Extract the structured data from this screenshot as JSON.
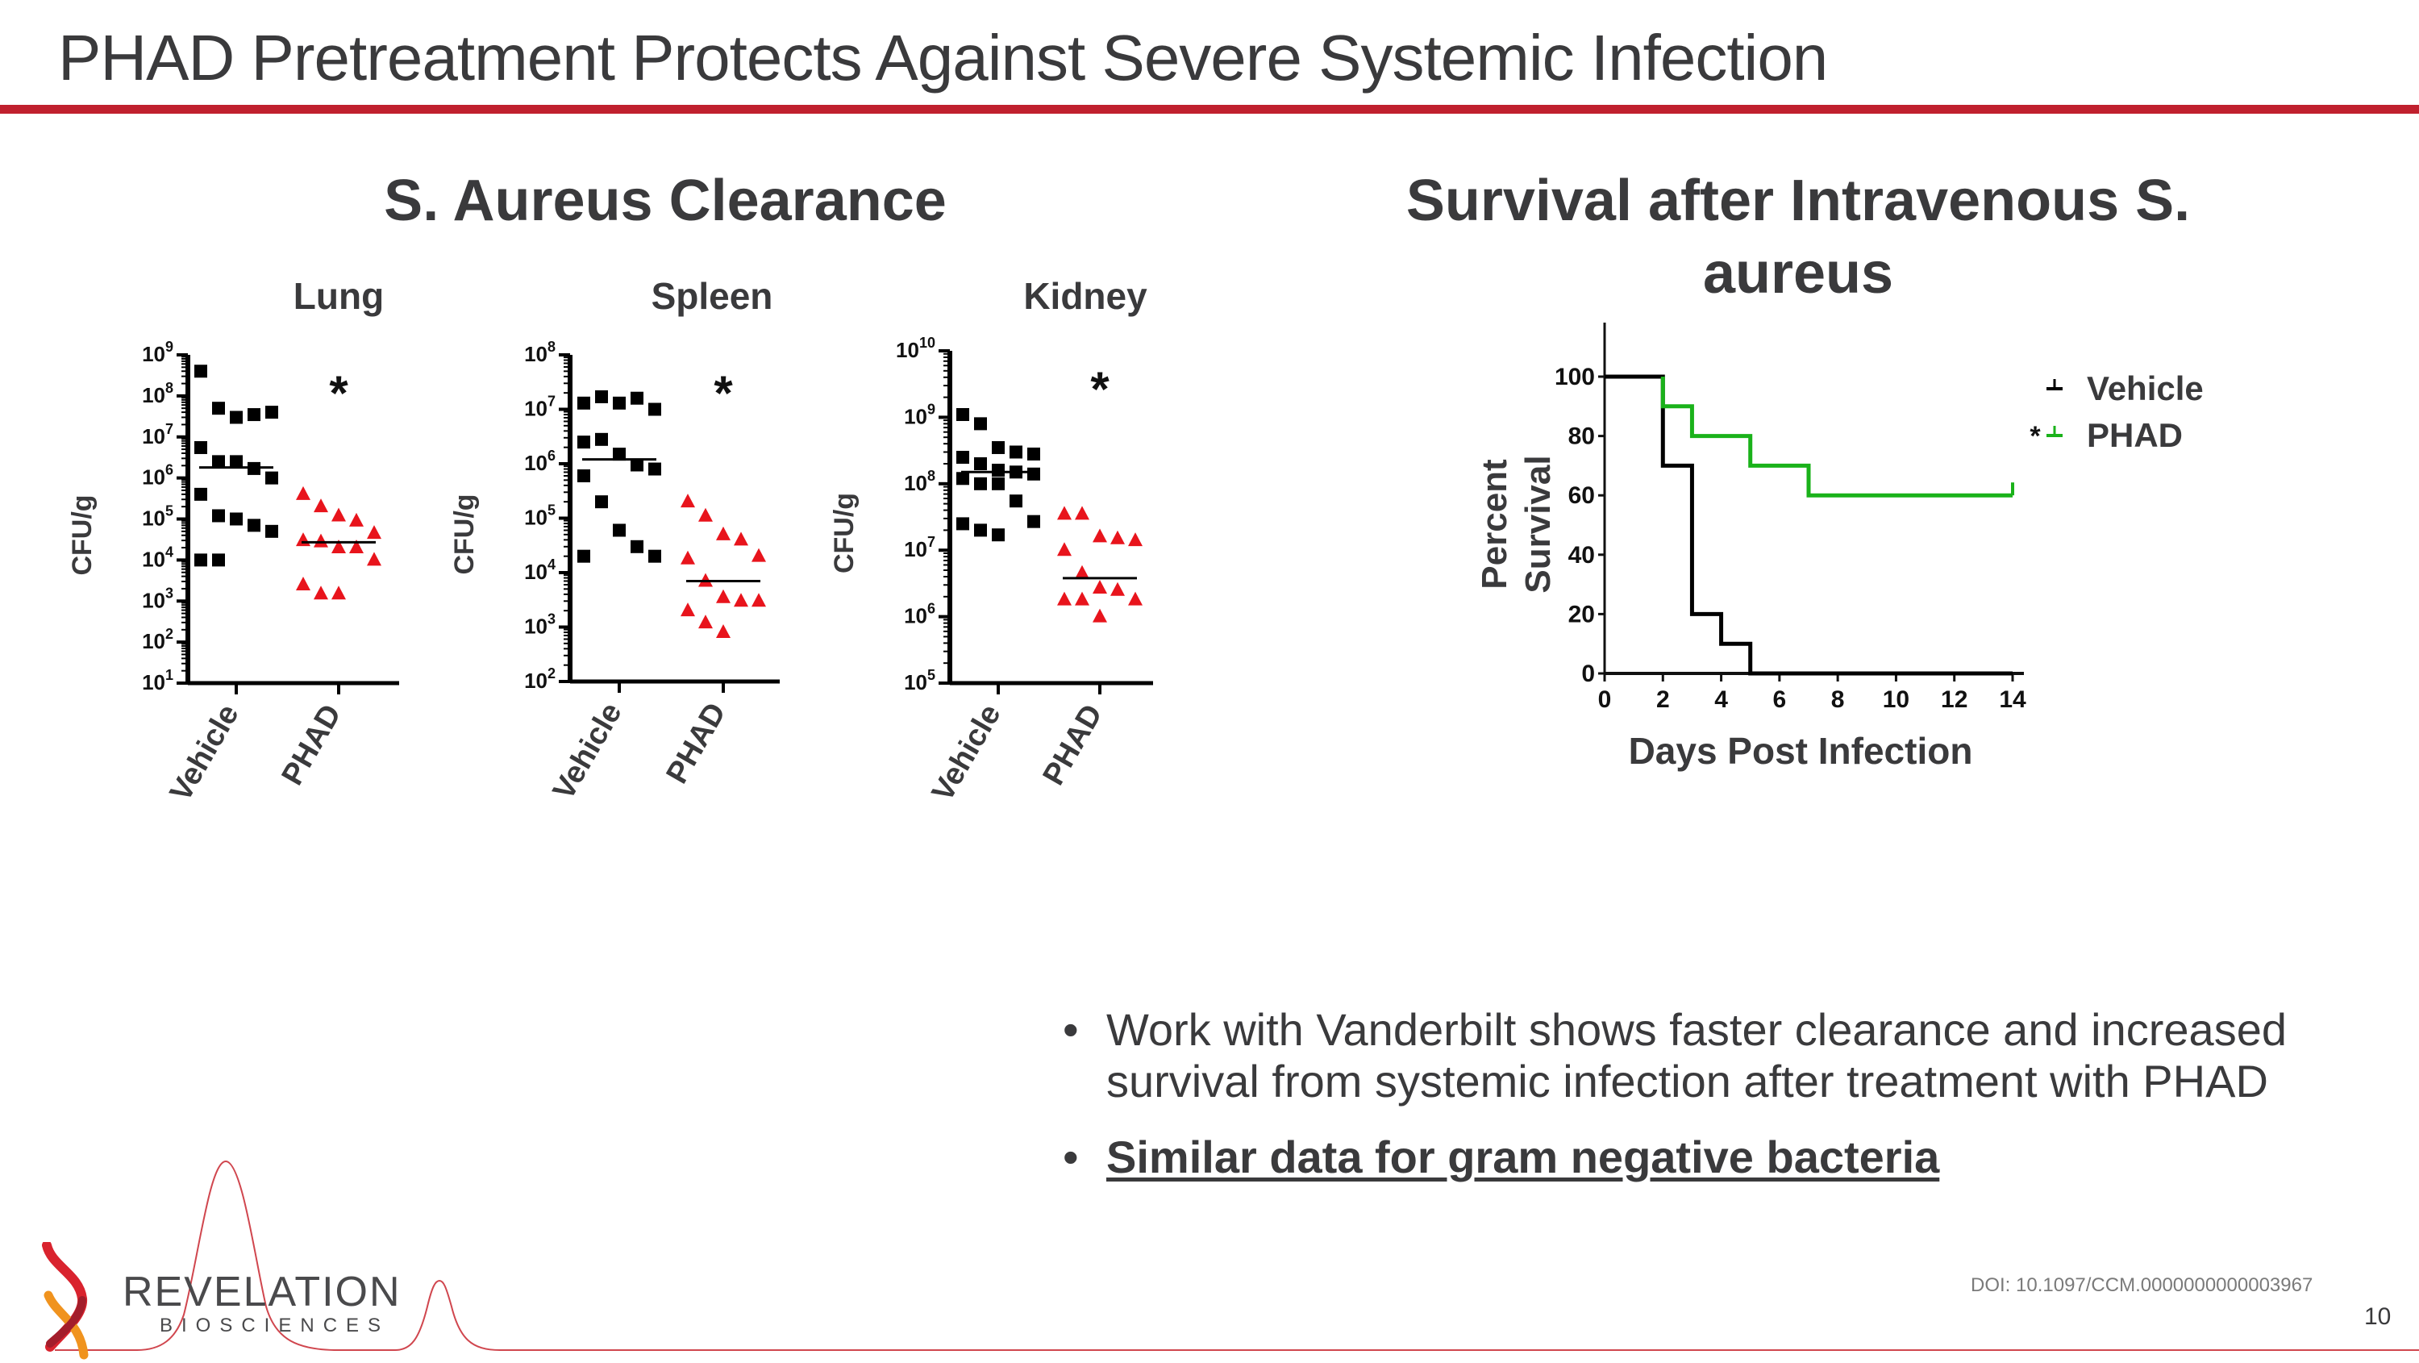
{
  "slide": {
    "title": "PHAD Pretreatment Protects Against Severe Systemic Infection",
    "accent_color": "#c0202e",
    "page_number": "10",
    "doi": "DOI: 10.1097/CCM.0000000000003967"
  },
  "left_section": {
    "title": "S. Aureus Clearance",
    "panels": [
      {
        "label": "Lung"
      },
      {
        "label": "Spleen"
      },
      {
        "label": "Kidney"
      }
    ]
  },
  "right_section": {
    "title_line1": "Survival after Intravenous S.",
    "title_line2": "aureus"
  },
  "bullets": [
    {
      "text": "Work with Vanderbilt shows faster clearance and increased survival from systemic infection after treatment with PHAD"
    },
    {
      "text": "Similar data for gram negative bacteria"
    }
  ],
  "bullet_glyph": "•",
  "logo": {
    "name": "REVELATION",
    "sub": "BIOSCIENCES",
    "colors": [
      "#d9232e",
      "#a31d2b",
      "#f0931e"
    ]
  },
  "chart_data": [
    {
      "type": "scatter",
      "title": "Lung",
      "ylabel": "CFU/g",
      "yscale": "log",
      "ylim": [
        10,
        1000000000
      ],
      "yticks": [
        "10^1",
        "10^2",
        "10^3",
        "10^4",
        "10^5",
        "10^6",
        "10^7",
        "10^8",
        "10^9"
      ],
      "categories": [
        "Vehicle",
        "PHAD"
      ],
      "significance": "*",
      "series": [
        {
          "name": "Vehicle",
          "marker": "square",
          "color": "#000000",
          "median": 1800000,
          "values": [
            400000000,
            50000000,
            30000000,
            35000000,
            40000000,
            5500000,
            2500000,
            2500000,
            1700000,
            1000000,
            400000,
            120000,
            100000,
            70000,
            50000,
            10000,
            10000
          ]
        },
        {
          "name": "PHAD",
          "marker": "triangle",
          "color": "#e8141c",
          "median": 27000,
          "values": [
            400000,
            200000,
            120000,
            90000,
            45000,
            30000,
            28000,
            20000,
            20000,
            10000,
            2500,
            1500,
            1500
          ]
        }
      ]
    },
    {
      "type": "scatter",
      "title": "Spleen",
      "ylabel": "CFU/g",
      "yscale": "log",
      "ylim": [
        100,
        100000000
      ],
      "yticks": [
        "10^2",
        "10^3",
        "10^4",
        "10^5",
        "10^6",
        "10^7",
        "10^8"
      ],
      "categories": [
        "Vehicle",
        "PHAD"
      ],
      "significance": "*",
      "series": [
        {
          "name": "Vehicle",
          "marker": "square",
          "color": "#000000",
          "median": 1200000,
          "values": [
            13000000,
            17000000,
            13000000,
            16000000,
            10000000,
            2500000,
            2800000,
            1500000,
            950000,
            800000,
            600000,
            200000,
            60000,
            30000,
            20000,
            20000
          ]
        },
        {
          "name": "PHAD",
          "marker": "triangle",
          "color": "#e8141c",
          "median": 7000,
          "values": [
            200000,
            110000,
            50000,
            40000,
            20000,
            18000,
            7000,
            3500,
            3000,
            3000,
            2000,
            1200,
            800
          ]
        }
      ]
    },
    {
      "type": "scatter",
      "title": "Kidney",
      "ylabel": "CFU/g",
      "yscale": "log",
      "ylim": [
        100000,
        10000000000
      ],
      "yticks": [
        "10^5",
        "10^6",
        "10^7",
        "10^8",
        "10^9",
        "10^10"
      ],
      "categories": [
        "Vehicle",
        "PHAD"
      ],
      "significance": "*",
      "series": [
        {
          "name": "Vehicle",
          "marker": "square",
          "color": "#000000",
          "median": 150000000,
          "values": [
            1100000000,
            800000000,
            350000000,
            300000000,
            280000000,
            250000000,
            200000000,
            160000000,
            150000000,
            140000000,
            120000000,
            100000000,
            100000000,
            55000000,
            27000000,
            25000000,
            20000000,
            17000000
          ]
        },
        {
          "name": "PHAD",
          "marker": "triangle",
          "color": "#e8141c",
          "median": 3800000,
          "values": [
            35000000,
            35000000,
            16000000,
            15000000,
            14000000,
            10000000,
            4500000,
            2700000,
            2500000,
            1800000,
            1800000,
            1800000,
            1000000
          ]
        }
      ]
    },
    {
      "type": "line",
      "subtype": "kaplan-meier",
      "title": "Survival after Intravenous S. aureus",
      "xlabel": "Days Post Infection",
      "ylabel": "Percent Survival",
      "xlim": [
        0,
        14
      ],
      "ylim": [
        0,
        100
      ],
      "xticks": [
        0,
        2,
        4,
        6,
        8,
        10,
        12,
        14
      ],
      "yticks": [
        0,
        20,
        40,
        60,
        80,
        100
      ],
      "legend_position": "right",
      "series": [
        {
          "name": "Vehicle",
          "color": "#000000",
          "steps": [
            [
              0,
              100
            ],
            [
              2,
              100
            ],
            [
              2,
              70
            ],
            [
              3,
              70
            ],
            [
              3,
              20
            ],
            [
              4,
              20
            ],
            [
              4,
              10
            ],
            [
              5,
              10
            ],
            [
              5,
              0
            ],
            [
              14,
              0
            ]
          ]
        },
        {
          "name": "PHAD",
          "color": "#1ab21a",
          "significance": "*",
          "steps": [
            [
              2,
              100
            ],
            [
              2,
              90
            ],
            [
              3,
              90
            ],
            [
              3,
              80
            ],
            [
              5,
              80
            ],
            [
              5,
              70
            ],
            [
              7,
              70
            ],
            [
              7,
              60
            ],
            [
              14,
              60
            ]
          ]
        }
      ]
    }
  ]
}
